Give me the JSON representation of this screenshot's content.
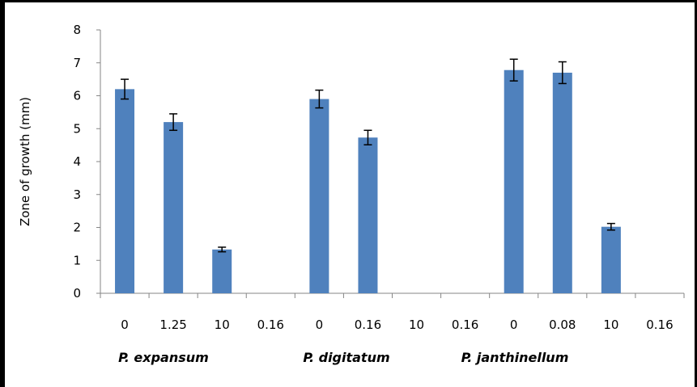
{
  "chart_data": {
    "type": "bar",
    "ylabel": "Zone of growth (mm)",
    "xlabel": "",
    "ylim": [
      0,
      8
    ],
    "yticks": [
      0,
      1,
      2,
      3,
      4,
      5,
      6,
      7,
      8
    ],
    "categories": [
      "0",
      "1.25",
      "10",
      "0.16",
      "0",
      "0.16",
      "10",
      "0.16",
      "0",
      "0.08",
      "10",
      "0.16"
    ],
    "groups": [
      {
        "label": "P. expansum",
        "categories": [
          "0",
          "1.25",
          "10",
          "0.16"
        ]
      },
      {
        "label": "P. digitatum",
        "categories": [
          "0",
          "0.16",
          "10",
          "0.16"
        ]
      },
      {
        "label": "P. janthinellum",
        "categories": [
          "0",
          "0.08",
          "10",
          "0.16"
        ]
      }
    ],
    "values": [
      6.2,
      5.2,
      1.33,
      0,
      5.9,
      4.73,
      0,
      0,
      6.78,
      6.7,
      2.02,
      0
    ],
    "errors": [
      0.3,
      0.25,
      0.07,
      0,
      0.27,
      0.22,
      0,
      0,
      0.33,
      0.33,
      0.1,
      0
    ],
    "bar_color": "#4f81bd",
    "grid": false,
    "legend": "none"
  }
}
